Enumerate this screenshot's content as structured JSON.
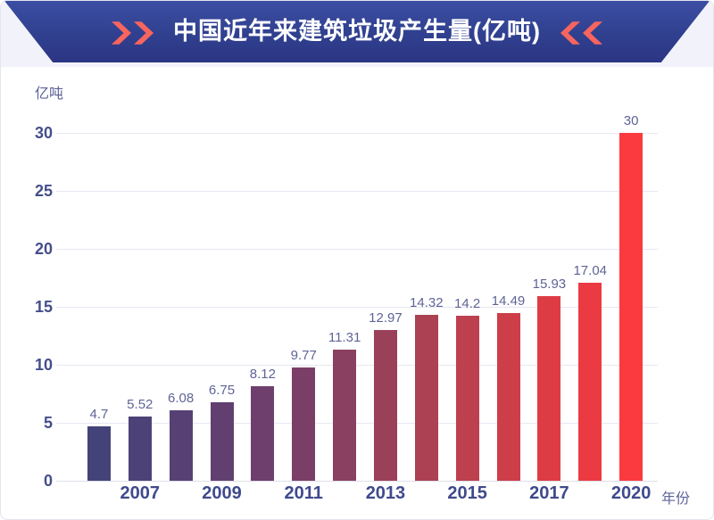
{
  "header": {
    "title": "中国近年来建筑垃圾产生量(亿吨)",
    "title_color": "#ffffff",
    "chevron_color": "#f8655e",
    "banner_top_color": "#3c4ea3",
    "banner_bottom_color": "#2b3583",
    "left_icon": "double-chevron-right",
    "right_icon": "double-chevron-left"
  },
  "chart_data": {
    "type": "bar",
    "title": "中国近年来建筑垃圾产生量(亿吨)",
    "unit_label": "亿吨",
    "xlabel": "年份",
    "values": [
      4.7,
      5.52,
      6.08,
      6.75,
      8.12,
      9.77,
      11.31,
      12.97,
      14.32,
      14.2,
      14.49,
      15.93,
      17.04,
      30
    ],
    "value_labels": [
      "4.7",
      "5.52",
      "6.08",
      "6.75",
      "8.12",
      "9.77",
      "11.31",
      "12.97",
      "14.32",
      "14.2",
      "14.49",
      "15.93",
      "17.04",
      "30"
    ],
    "x_labels": [
      "",
      "2007",
      "",
      "2009",
      "",
      "2011",
      "",
      "2013",
      "",
      "2015",
      "",
      "2017",
      "",
      "2020"
    ],
    "x_tick_labels_shown": [
      "2007",
      "2009",
      "2011",
      "2013",
      "2015",
      "2017",
      "2020"
    ],
    "y_ticks": [
      0,
      5,
      10,
      15,
      20,
      25,
      30
    ],
    "ylim": [
      0,
      30
    ],
    "grid": true,
    "legend": "none",
    "bar_colors": [
      "#444379",
      "#4d4277",
      "#574174",
      "#614071",
      "#6e3f6d",
      "#7b3f67",
      "#8a4060",
      "#9a4159",
      "#ab4152",
      "#bc404d",
      "#cd3e49",
      "#de3c45",
      "#ec3a42",
      "#fb3a40"
    ],
    "value_label_color": "#5f6496",
    "axis_label_color": "#3f4a8c",
    "y_label_color": "#454e8c",
    "grid_color": "#e7e8f1"
  }
}
